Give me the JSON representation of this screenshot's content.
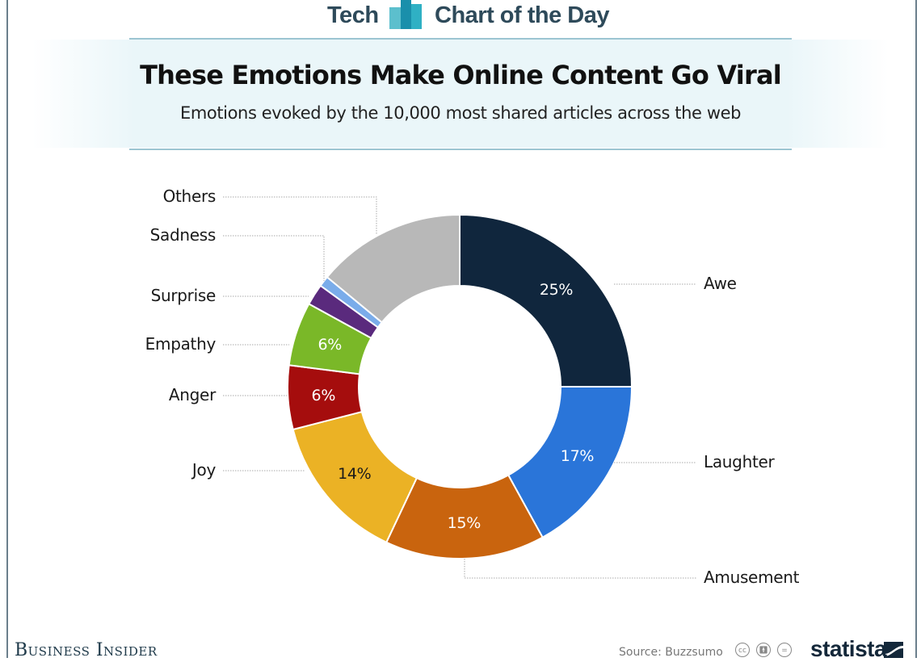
{
  "header": {
    "section_left": "Tech",
    "section_right": "Chart of the Day",
    "logo_icon": "bar-chart-icon",
    "title": "These Emotions Make Online Content Go Viral",
    "subtitle": "Emotions evoked by the 10,000 most shared articles across the web"
  },
  "footer": {
    "brand": "Business Insider",
    "source": "Source: Buzzsumo",
    "license_icons": [
      "cc-icon",
      "attribution-icon",
      "no-derivatives-icon"
    ],
    "publisher": "statista"
  },
  "colors": {
    "header_text": "#2e4a5a",
    "header_rule": "#9cc5d2",
    "header_band": "#eaf6f9",
    "leader_line": "#aaaaaa"
  },
  "chart_data": {
    "type": "pie",
    "variant": "donut",
    "title": "These Emotions Make Online Content Go Viral",
    "subtitle": "Emotions evoked by the 10,000 most shared articles across the web",
    "source": "Buzzsumo",
    "unit": "%",
    "start_angle_deg": 0,
    "direction": "clockwise",
    "categories": [
      "Awe",
      "Laughter",
      "Amusement",
      "Joy",
      "Anger",
      "Empathy",
      "Surprise",
      "Sadness",
      "Others"
    ],
    "values": [
      25,
      17,
      15,
      14,
      6,
      6,
      2,
      1,
      14
    ],
    "value_labels": [
      "25%",
      "17%",
      "15%",
      "14%",
      "6%",
      "6%",
      "",
      "",
      ""
    ],
    "colors": [
      "#10263d",
      "#2a75d9",
      "#c9640e",
      "#ebb225",
      "#a50d0d",
      "#7ab828",
      "#5a2a7d",
      "#7aacea",
      "#b8b8b8"
    ],
    "label_colors": [
      "#ffffff",
      "#ffffff",
      "#ffffff",
      "#1a1a1a",
      "#ffffff",
      "#ffffff",
      "",
      "",
      ""
    ],
    "legend_position": "leader-line labels"
  }
}
